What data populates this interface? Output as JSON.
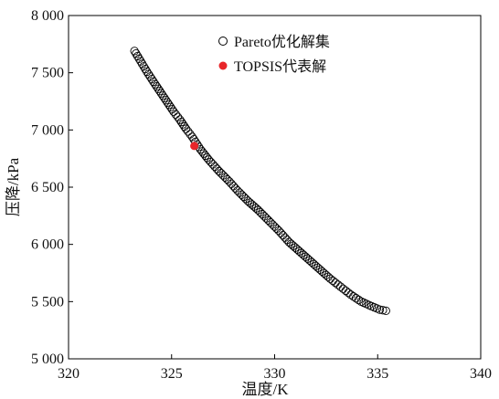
{
  "chart_data": {
    "type": "scatter",
    "title": "",
    "xlabel": "温度/K",
    "ylabel": "压降/kPa",
    "xlim": [
      320,
      340
    ],
    "ylim": [
      5000,
      8000
    ],
    "x_ticks": [
      320,
      325,
      330,
      335,
      340
    ],
    "y_ticks": [
      5000,
      5500,
      6000,
      6500,
      7000,
      7500,
      8000
    ],
    "x_tick_labels": [
      "320",
      "325",
      "330",
      "335",
      "340"
    ],
    "y_tick_labels": [
      "5 000",
      "5 500",
      "6 000",
      "6 500",
      "7 000",
      "7 500",
      "8 000"
    ],
    "grid": false,
    "legend_position": "top-right",
    "colors": {
      "pareto_marker_edge": "#000000",
      "topsis_marker_fill": "#e8262a"
    },
    "series": [
      {
        "name": "Pareto优化解集",
        "marker": "open-circle",
        "points": [
          [
            323.2,
            7690
          ],
          [
            323.5,
            7600
          ],
          [
            323.8,
            7510
          ],
          [
            324.2,
            7400
          ],
          [
            324.5,
            7320
          ],
          [
            324.8,
            7240
          ],
          [
            325.1,
            7160
          ],
          [
            325.4,
            7090
          ],
          [
            325.7,
            7010
          ],
          [
            326.0,
            6940
          ],
          [
            326.4,
            6830
          ],
          [
            326.8,
            6740
          ],
          [
            327.3,
            6640
          ],
          [
            327.8,
            6550
          ],
          [
            328.2,
            6470
          ],
          [
            328.7,
            6380
          ],
          [
            329.2,
            6300
          ],
          [
            329.7,
            6210
          ],
          [
            330.2,
            6120
          ],
          [
            330.7,
            6020
          ],
          [
            331.2,
            5940
          ],
          [
            331.7,
            5860
          ],
          [
            332.2,
            5780
          ],
          [
            332.7,
            5700
          ],
          [
            333.2,
            5630
          ],
          [
            333.7,
            5560
          ],
          [
            334.2,
            5500
          ],
          [
            334.7,
            5460
          ],
          [
            335.1,
            5430
          ],
          [
            335.4,
            5420
          ]
        ]
      },
      {
        "name": "TOPSIS代表解",
        "marker": "filled-circle",
        "points": [
          [
            326.1,
            6860
          ]
        ]
      }
    ]
  }
}
